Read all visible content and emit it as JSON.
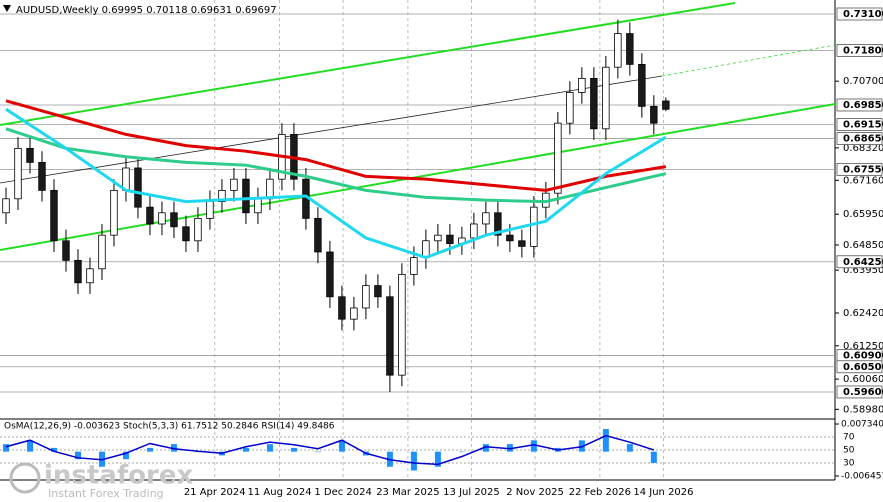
{
  "chart_data": {
    "type": "candlestick",
    "title": "AUDUSD,Weekly  0.69995 0.70118 0.69631 0.69697",
    "watermark": "instaforex",
    "watermark_sub": "Instant Forex Trading",
    "up_color": "#ffffff",
    "down_color": "#1a1a1a",
    "xlim": [
      -0.5,
      69.1
    ],
    "ylim": [
      0.5867,
      0.736
    ],
    "open": [
      0.66,
      0.665,
      0.683,
      0.678,
      0.668,
      0.65,
      0.643,
      0.635,
      0.64,
      0.652,
      0.668,
      0.676,
      0.662,
      0.656,
      0.66,
      0.655,
      0.65,
      0.658,
      0.664,
      0.668,
      0.672,
      0.66,
      0.665,
      0.672,
      0.688,
      0.672,
      0.658,
      0.646,
      0.63,
      0.622,
      0.626,
      0.634,
      0.63,
      0.602,
      0.638,
      0.644,
      0.65,
      0.652,
      0.649,
      0.651,
      0.656,
      0.66,
      0.652,
      0.65,
      0.648,
      0.662,
      0.667,
      0.692,
      0.703,
      0.708,
      0.69,
      0.712,
      0.724,
      0.713,
      0.698,
      0.69995
    ],
    "high": [
      0.669,
      0.687,
      0.687,
      0.682,
      0.672,
      0.654,
      0.647,
      0.644,
      0.656,
      0.672,
      0.68,
      0.68,
      0.666,
      0.664,
      0.664,
      0.659,
      0.662,
      0.668,
      0.672,
      0.676,
      0.676,
      0.669,
      0.676,
      0.692,
      0.692,
      0.676,
      0.662,
      0.65,
      0.634,
      0.63,
      0.638,
      0.638,
      0.634,
      0.642,
      0.648,
      0.654,
      0.656,
      0.656,
      0.655,
      0.66,
      0.664,
      0.664,
      0.656,
      0.654,
      0.666,
      0.671,
      0.696,
      0.707,
      0.712,
      0.712,
      0.716,
      0.729,
      0.728,
      0.717,
      0.702,
      0.70118
    ],
    "low": [
      0.656,
      0.661,
      0.674,
      0.664,
      0.646,
      0.639,
      0.631,
      0.631,
      0.636,
      0.648,
      0.664,
      0.658,
      0.652,
      0.652,
      0.651,
      0.646,
      0.646,
      0.654,
      0.66,
      0.664,
      0.656,
      0.656,
      0.661,
      0.668,
      0.668,
      0.654,
      0.642,
      0.626,
      0.618,
      0.618,
      0.622,
      0.626,
      0.596,
      0.598,
      0.634,
      0.64,
      0.646,
      0.645,
      0.645,
      0.647,
      0.652,
      0.648,
      0.646,
      0.644,
      0.644,
      0.658,
      0.663,
      0.688,
      0.699,
      0.686,
      0.686,
      0.708,
      0.709,
      0.694,
      0.688,
      0.69631
    ],
    "close": [
      0.665,
      0.683,
      0.678,
      0.668,
      0.65,
      0.643,
      0.635,
      0.64,
      0.652,
      0.668,
      0.676,
      0.662,
      0.656,
      0.66,
      0.655,
      0.65,
      0.658,
      0.664,
      0.668,
      0.672,
      0.66,
      0.665,
      0.672,
      0.688,
      0.672,
      0.658,
      0.646,
      0.63,
      0.622,
      0.626,
      0.634,
      0.63,
      0.602,
      0.638,
      0.644,
      0.65,
      0.652,
      0.649,
      0.651,
      0.656,
      0.66,
      0.652,
      0.65,
      0.648,
      0.662,
      0.667,
      0.692,
      0.703,
      0.708,
      0.69,
      0.712,
      0.724,
      0.713,
      0.698,
      0.692,
      0.69697
    ],
    "series": [
      {
        "color": "#e00000",
        "x": [
          0,
          5,
          10,
          15,
          20,
          25,
          30,
          35,
          40,
          45,
          50,
          55
        ],
        "values": [
          0.7,
          0.694,
          0.688,
          0.684,
          0.682,
          0.679,
          0.673,
          0.672,
          0.67,
          0.668,
          0.673,
          0.6765
        ]
      },
      {
        "color": "#2ecc8a",
        "x": [
          0,
          5,
          10,
          15,
          20,
          25,
          30,
          35,
          40,
          45,
          50,
          55
        ],
        "values": [
          0.69,
          0.683,
          0.68,
          0.678,
          0.677,
          0.673,
          0.668,
          0.6655,
          0.6645,
          0.664,
          0.669,
          0.674
        ]
      },
      {
        "color": "#1fd8f0",
        "x": [
          0,
          5,
          10,
          15,
          20,
          25,
          30,
          35,
          40,
          45,
          50,
          55
        ],
        "values": [
          0.697,
          0.683,
          0.668,
          0.664,
          0.665,
          0.666,
          0.651,
          0.644,
          0.652,
          0.657,
          0.674,
          0.687
        ]
      }
    ],
    "levels": [
      {
        "value": 0.731,
        "label": "0.73100"
      },
      {
        "value": 0.718,
        "label": "0.71800"
      },
      {
        "value": 0.6985,
        "label": "0.69850"
      },
      {
        "value": 0.6915,
        "label": "0.69150"
      },
      {
        "value": 0.6865,
        "label": "0.68650"
      },
      {
        "value": 0.6755,
        "label": "0.67550"
      },
      {
        "value": 0.6425,
        "label": "0.64250"
      },
      {
        "value": 0.609,
        "label": "0.60900"
      },
      {
        "value": 0.605,
        "label": "0.60500"
      },
      {
        "value": 0.596,
        "label": "0.59600"
      }
    ],
    "yticks": [
      {
        "value": 0.707,
        "label": "0.70700"
      },
      {
        "value": 0.6832,
        "label": "0.68320"
      },
      {
        "value": 0.6716,
        "label": "0.67160"
      },
      {
        "value": 0.6595,
        "label": "0.65950"
      },
      {
        "value": 0.6485,
        "label": "0.64850"
      },
      {
        "value": 0.6395,
        "label": "0.63950"
      },
      {
        "value": 0.6242,
        "label": "0.62420"
      },
      {
        "value": 0.6125,
        "label": "0.61250"
      },
      {
        "value": 0.6006,
        "label": "0.60060"
      },
      {
        "value": 0.5898,
        "label": "0.58980"
      }
    ],
    "xticks": [
      {
        "value": 17.4,
        "label": "21 Apr 2024"
      },
      {
        "value": 22.8,
        "label": "11 Aug 2024"
      },
      {
        "value": 28.1,
        "label": "1 Dec 2024"
      },
      {
        "value": 33.5,
        "label": "23 Mar 2025"
      },
      {
        "value": 38.8,
        "label": "13 Jul 2025"
      },
      {
        "value": 44.1,
        "label": "2 Nov 2025"
      },
      {
        "value": 49.5,
        "label": "22 Feb 2026"
      },
      {
        "value": 54.8,
        "label": "14 Jun 2026"
      }
    ],
    "oscillator": {
      "title": "OsMA(12,26,9) -0.003623 Stoch(5,3,3) 61.7512 50.2846 RSI(14) 49.8486",
      "x": [
        0,
        2,
        4,
        6,
        8,
        10,
        12,
        14,
        16,
        18,
        20,
        22,
        24,
        26,
        28,
        30,
        32,
        34,
        36,
        38,
        40,
        42,
        44,
        46,
        48,
        50,
        52,
        54
      ],
      "osma": [
        0.002,
        0.003,
        0.001,
        -0.002,
        -0.004,
        -0.002,
        0.001,
        0.002,
        0,
        -0.001,
        0.001,
        0.002,
        0.001,
        0,
        0.003,
        -0.001,
        -0.004,
        -0.005,
        -0.004,
        0,
        0.002,
        0.002,
        0.003,
        0.001,
        0.003,
        0.006,
        0.002,
        -0.003
      ],
      "osma_color": "#1e90ff",
      "ylim": [
        -0.006457,
        0.00734
      ],
      "yticks": [
        {
          "value": 0.00734,
          "label": "0.007340"
        },
        {
          "value": -0.006457,
          "label": "-0.006457"
        }
      ],
      "rsi": [
        55,
        65,
        48,
        38,
        35,
        45,
        60,
        52,
        48,
        45,
        55,
        62,
        58,
        52,
        65,
        45,
        35,
        30,
        28,
        40,
        55,
        52,
        58,
        50,
        55,
        72,
        62,
        50
      ],
      "rsi_color": "#0000cc",
      "rsi_ylim": [
        7,
        93
      ],
      "rsi_yticks": [
        70,
        50,
        30
      ]
    }
  }
}
